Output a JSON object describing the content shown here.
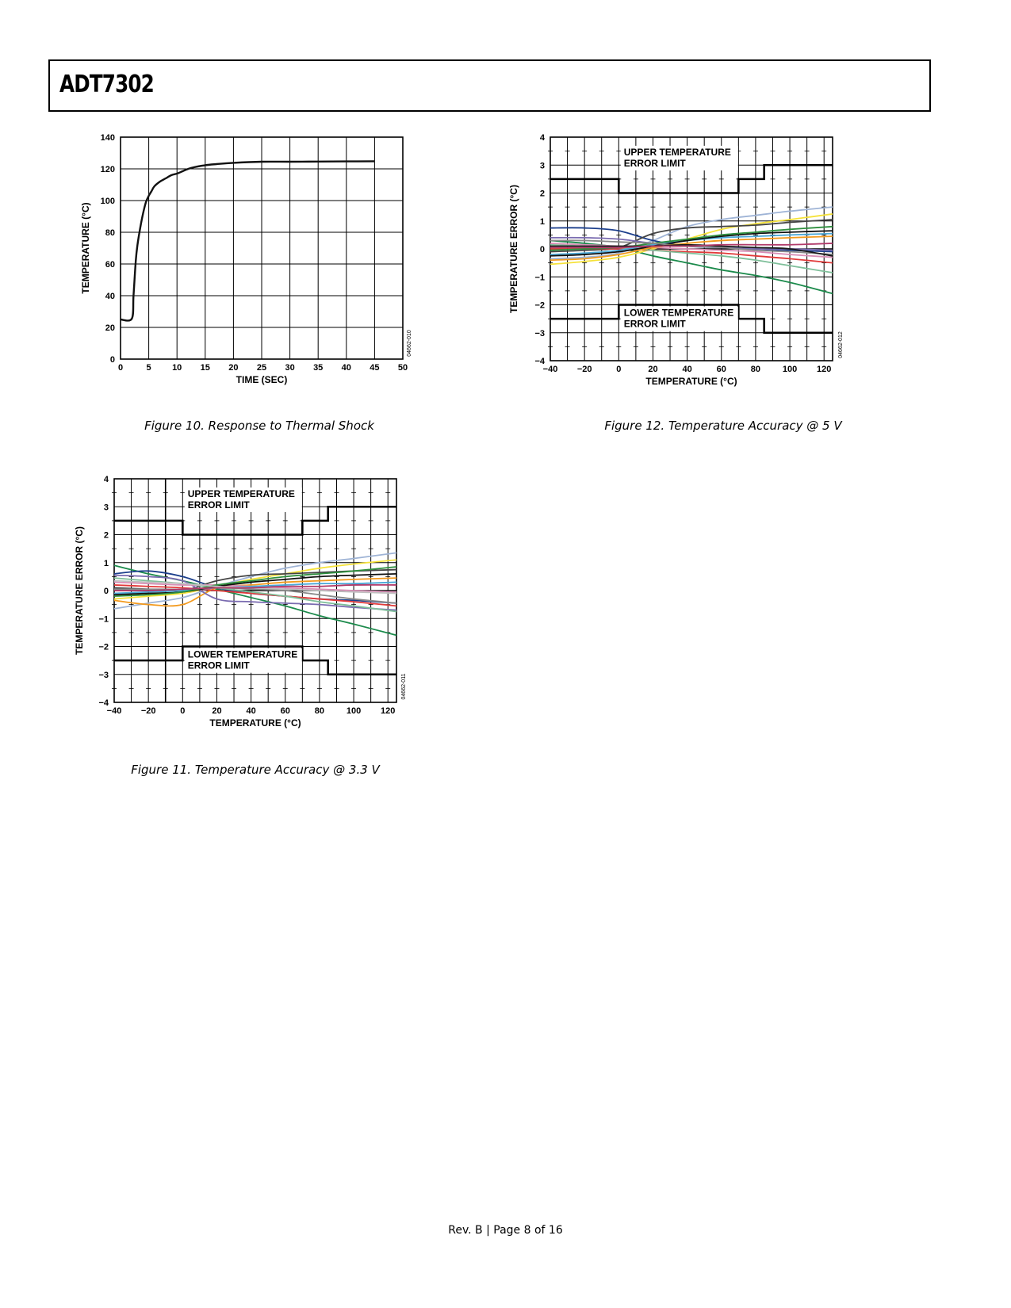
{
  "header": {
    "title": "ADT7302"
  },
  "footer": {
    "text": "Rev. B | Page 8 of 16"
  },
  "figures": {
    "fig10": {
      "caption": "Figure 10. Response to Thermal Shock",
      "code": "04662-010"
    },
    "fig11": {
      "caption": "Figure 11. Temperature Accuracy @ 3.3 V",
      "code": "04662-011"
    },
    "fig12": {
      "caption": "Figure 12. Temperature Accuracy @ 5 V",
      "code": "04662-012"
    }
  },
  "chart_data": [
    {
      "id": "fig10",
      "type": "line",
      "title": "",
      "xlabel": "TIME (SEC)",
      "ylabel": "TEMPERATURE (°C)",
      "xlim": [
        0,
        50
      ],
      "ylim": [
        0,
        140
      ],
      "xticks": [
        0,
        5,
        10,
        15,
        20,
        25,
        30,
        35,
        40,
        45,
        50
      ],
      "yticks": [
        0,
        20,
        40,
        60,
        80,
        100,
        120,
        140
      ],
      "grid": true,
      "series": [
        {
          "color": "#111111",
          "x": [
            0,
            2,
            2.3,
            2.7,
            3,
            3.5,
            4,
            4.5,
            5,
            5.5,
            6,
            7,
            8,
            9,
            10,
            11,
            12,
            13,
            15,
            17,
            20,
            25,
            30,
            35,
            40,
            45
          ],
          "y": [
            25,
            25.5,
            40,
            62,
            72,
            83,
            92,
            99,
            103,
            106,
            109,
            112,
            114,
            116,
            117,
            118.5,
            120,
            121,
            122.3,
            123,
            123.8,
            124.5,
            124.5,
            124.6,
            124.7,
            124.8
          ]
        }
      ]
    },
    {
      "id": "fig11",
      "type": "line",
      "title": "",
      "xlabel": "TEMPERATURE (°C)",
      "ylabel": "TEMPERATURE ERROR (°C)",
      "xlim": [
        -40,
        125
      ],
      "ylim": [
        -4,
        4
      ],
      "xticks": [
        -40,
        -20,
        0,
        20,
        40,
        60,
        80,
        100,
        120
      ],
      "yticks": [
        -4,
        -3,
        -2,
        -1,
        0,
        1,
        2,
        3,
        4
      ],
      "grid": true,
      "limit_labels": {
        "upper": [
          "UPPER TEMPERATURE",
          "ERROR LIMIT"
        ],
        "lower": [
          "LOWER TEMPERATURE",
          "ERROR LIMIT"
        ]
      },
      "limits": {
        "upper": {
          "x": [
            -40,
            0,
            0,
            70,
            70,
            85,
            85,
            125
          ],
          "y": [
            2.5,
            2.5,
            2,
            2,
            2.5,
            2.5,
            3,
            3
          ]
        },
        "lower": {
          "x": [
            -40,
            0,
            0,
            70,
            70,
            85,
            85,
            125
          ],
          "y": [
            -2.5,
            -2.5,
            -2,
            -2,
            -2.5,
            -2.5,
            -3,
            -3
          ]
        }
      },
      "x": [
        -40,
        -20,
        0,
        20,
        40,
        60,
        80,
        100,
        125
      ],
      "series": [
        {
          "color": "#1b8a4b",
          "values": [
            0.9,
            0.6,
            0.35,
            0.05,
            -0.25,
            -0.55,
            -0.9,
            -1.2,
            -1.6
          ]
        },
        {
          "color": "#9fb4d6",
          "values": [
            -0.65,
            -0.45,
            -0.25,
            0.15,
            0.5,
            0.8,
            1.0,
            1.15,
            1.35
          ]
        },
        {
          "color": "#f5e23a",
          "values": [
            -0.3,
            -0.2,
            -0.1,
            0.15,
            0.4,
            0.6,
            0.8,
            0.95,
            1.1
          ]
        },
        {
          "color": "#1c3f8c",
          "values": [
            0.6,
            0.7,
            0.5,
            0.1,
            -0.1,
            -0.2,
            -0.3,
            -0.35,
            -0.45
          ]
        },
        {
          "color": "#f39a1e",
          "values": [
            -0.35,
            -0.5,
            -0.5,
            0.1,
            0.2,
            0.3,
            0.35,
            0.4,
            0.45
          ]
        },
        {
          "color": "#444444",
          "values": [
            0.1,
            0.05,
            0.0,
            0.35,
            0.55,
            0.6,
            0.65,
            0.7,
            0.75
          ]
        },
        {
          "color": "#e23a3a",
          "values": [
            0.2,
            0.15,
            0.1,
            0.0,
            -0.1,
            -0.2,
            -0.3,
            -0.4,
            -0.55
          ]
        },
        {
          "color": "#7a6bb0",
          "values": [
            0.55,
            0.5,
            0.35,
            -0.3,
            -0.4,
            -0.45,
            -0.5,
            -0.6,
            -0.7
          ]
        },
        {
          "color": "#7fbf9a",
          "values": [
            0.45,
            0.35,
            0.25,
            0.1,
            -0.05,
            -0.2,
            -0.4,
            -0.55,
            -0.75
          ]
        },
        {
          "color": "#d98fb7",
          "values": [
            0.3,
            0.25,
            0.2,
            0.2,
            0.15,
            0.1,
            0.05,
            0.0,
            -0.05
          ]
        },
        {
          "color": "#4aa8d8",
          "values": [
            -0.1,
            -0.05,
            0.0,
            0.1,
            0.15,
            0.2,
            0.25,
            0.25,
            0.3
          ]
        },
        {
          "color": "#111111",
          "values": [
            -0.15,
            -0.1,
            -0.05,
            0.15,
            0.3,
            0.4,
            0.5,
            0.55,
            0.6
          ]
        },
        {
          "color": "#2e8f3e",
          "values": [
            -0.2,
            -0.15,
            -0.05,
            0.2,
            0.35,
            0.5,
            0.6,
            0.7,
            0.85
          ]
        },
        {
          "color": "#8a8a8a",
          "values": [
            0.05,
            0.05,
            0.05,
            0.1,
            0.05,
            0.0,
            -0.15,
            -0.3,
            -0.45
          ]
        },
        {
          "color": "#c0c0c0",
          "values": [
            0.35,
            0.3,
            0.25,
            0.15,
            0.1,
            0.05,
            0.0,
            -0.05,
            -0.1
          ]
        },
        {
          "color": "#b23a6a",
          "values": [
            0.0,
            0.0,
            0.05,
            0.1,
            0.1,
            0.15,
            0.15,
            0.2,
            0.2
          ]
        }
      ]
    },
    {
      "id": "fig12",
      "type": "line",
      "title": "",
      "xlabel": "TEMPERATURE (°C)",
      "ylabel": "TEMPERATURE ERROR (°C)",
      "xlim": [
        -40,
        125
      ],
      "ylim": [
        -4,
        4
      ],
      "xticks": [
        -40,
        -20,
        0,
        20,
        40,
        60,
        80,
        100,
        120
      ],
      "yticks": [
        -4,
        -3,
        -2,
        -1,
        0,
        1,
        2,
        3,
        4
      ],
      "grid": true,
      "limit_labels": {
        "upper": [
          "UPPER TEMPERATURE",
          "ERROR LIMIT"
        ],
        "lower": [
          "LOWER TEMPERATURE",
          "ERROR LIMIT"
        ]
      },
      "limits": {
        "upper": {
          "x": [
            -40,
            0,
            0,
            70,
            70,
            85,
            85,
            125
          ],
          "y": [
            2.5,
            2.5,
            2,
            2,
            2.5,
            2.5,
            3,
            3
          ]
        },
        "lower": {
          "x": [
            -40,
            0,
            0,
            70,
            70,
            85,
            85,
            125
          ],
          "y": [
            -2.5,
            -2.5,
            -2,
            -2,
            -2.5,
            -2.5,
            -3,
            -3
          ]
        }
      },
      "x": [
        -40,
        -20,
        0,
        20,
        40,
        60,
        80,
        100,
        125
      ],
      "series": [
        {
          "color": "#1b8a4b",
          "values": [
            0.3,
            0.2,
            0.05,
            -0.25,
            -0.5,
            -0.75,
            -0.95,
            -1.2,
            -1.6
          ]
        },
        {
          "color": "#9fb4d6",
          "values": [
            -0.35,
            -0.3,
            -0.15,
            0.3,
            0.8,
            1.05,
            1.2,
            1.35,
            1.5
          ]
        },
        {
          "color": "#f5e23a",
          "values": [
            -0.55,
            -0.45,
            -0.3,
            0.0,
            0.35,
            0.7,
            0.9,
            1.05,
            1.25
          ]
        },
        {
          "color": "#1c3f8c",
          "values": [
            0.75,
            0.75,
            0.65,
            0.3,
            0.1,
            0.05,
            0.0,
            -0.05,
            -0.1
          ]
        },
        {
          "color": "#444444",
          "values": [
            -0.1,
            -0.05,
            0.05,
            0.55,
            0.75,
            0.8,
            0.85,
            0.95,
            1.05
          ]
        },
        {
          "color": "#e23a3a",
          "values": [
            0.0,
            0.0,
            0.0,
            -0.05,
            -0.1,
            -0.15,
            -0.25,
            -0.35,
            -0.5
          ]
        },
        {
          "color": "#7fbf9a",
          "values": [
            0.15,
            0.1,
            0.05,
            -0.05,
            -0.15,
            -0.25,
            -0.4,
            -0.6,
            -0.85
          ]
        },
        {
          "color": "#7a6bb0",
          "values": [
            0.4,
            0.4,
            0.35,
            0.2,
            0.1,
            0.05,
            0.0,
            0.0,
            -0.05
          ]
        },
        {
          "color": "#d98fb7",
          "values": [
            0.2,
            0.15,
            0.1,
            0.05,
            0.0,
            -0.05,
            -0.1,
            -0.2,
            -0.3
          ]
        },
        {
          "color": "#4aa8d8",
          "values": [
            -0.2,
            -0.15,
            -0.05,
            0.15,
            0.3,
            0.4,
            0.45,
            0.5,
            0.55
          ]
        },
        {
          "color": "#111111",
          "values": [
            -0.25,
            -0.2,
            -0.1,
            0.1,
            0.3,
            0.45,
            0.55,
            0.6,
            0.65
          ]
        },
        {
          "color": "#2e8f3e",
          "values": [
            -0.05,
            0.0,
            0.05,
            0.2,
            0.35,
            0.5,
            0.6,
            0.7,
            0.8
          ]
        },
        {
          "color": "#8a8a8a",
          "values": [
            0.3,
            0.3,
            0.25,
            0.2,
            0.1,
            0.05,
            -0.05,
            -0.1,
            -0.2
          ]
        },
        {
          "color": "#f39a1e",
          "values": [
            -0.4,
            -0.35,
            -0.2,
            0.05,
            0.2,
            0.3,
            0.35,
            0.4,
            0.45
          ]
        },
        {
          "color": "#1a1a1a",
          "values": [
            0.1,
            0.1,
            0.1,
            0.1,
            0.15,
            0.1,
            0.05,
            0.0,
            -0.25
          ]
        },
        {
          "color": "#b23a6a",
          "values": [
            0.05,
            0.05,
            0.05,
            0.1,
            0.1,
            0.15,
            0.15,
            0.15,
            0.2
          ]
        }
      ]
    }
  ]
}
